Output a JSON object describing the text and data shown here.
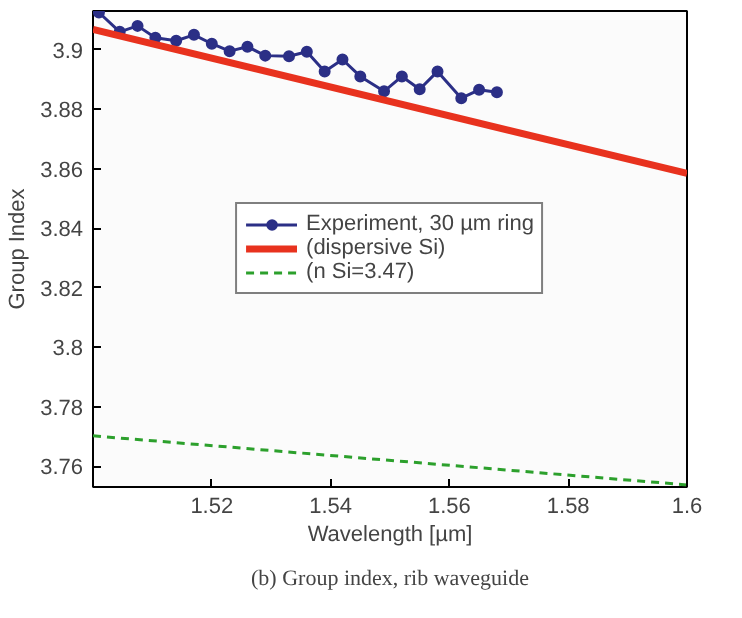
{
  "chart_data": {
    "type": "line",
    "xlabel": "Wavelength [µm]",
    "ylabel": "Group Index",
    "xlim": [
      1.5,
      1.6
    ],
    "ylim": [
      3.753,
      3.913
    ],
    "xticks": [
      1.52,
      1.54,
      1.56,
      1.58,
      1.6
    ],
    "yticks": [
      3.76,
      3.78,
      3.8,
      3.82,
      3.84,
      3.86,
      3.88,
      3.9
    ],
    "grid": false,
    "legend": "center",
    "annotations": [
      "(b) Group index, rib waveguide"
    ],
    "series": [
      {
        "name": "Experiment, 30 µm ring",
        "color": "#2b2f86",
        "marker": "circle",
        "line_style": "solid",
        "x": [
          1.501,
          1.5045,
          1.5075,
          1.5105,
          1.514,
          1.517,
          1.52,
          1.523,
          1.526,
          1.529,
          1.533,
          1.536,
          1.539,
          1.542,
          1.545,
          1.549,
          1.552,
          1.555,
          1.558,
          1.562,
          1.565,
          1.568
        ],
        "values": [
          3.9125,
          3.906,
          3.908,
          3.904,
          3.903,
          3.905,
          3.902,
          3.8995,
          3.901,
          3.898,
          3.8978,
          3.8993,
          3.8927,
          3.8967,
          3.891,
          3.886,
          3.891,
          3.8867,
          3.8927,
          3.8837,
          3.8865,
          3.8857
        ]
      },
      {
        "name": "(dispersive Si)",
        "color": "#e8321e",
        "marker": "none",
        "line_style": "solid",
        "x": [
          1.5,
          1.6
        ],
        "values": [
          3.9068,
          3.8584
        ]
      },
      {
        "name": "(n Si=3.47)",
        "color": "#2ca02c",
        "marker": "none",
        "line_style": "dashed",
        "x": [
          1.5,
          1.6
        ],
        "values": [
          3.7702,
          3.7537
        ]
      }
    ]
  }
}
